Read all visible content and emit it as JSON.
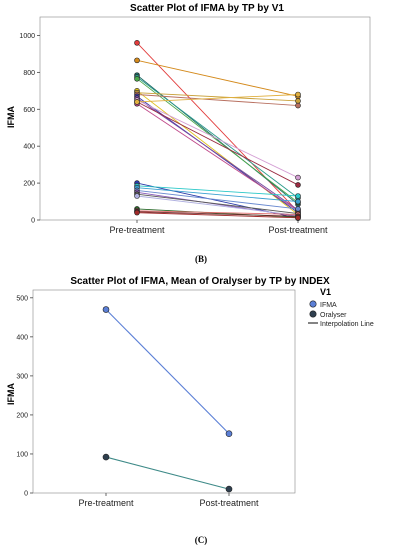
{
  "panel_b_label": "(B)",
  "panel_c_label": "(C)",
  "chart_data": [
    {
      "type": "line",
      "title": "Scatter Plot of IFMA by TP by V1",
      "xlabel": "",
      "ylabel": "IFMA",
      "categories": [
        "Pre-treatment",
        "Post-treatment"
      ],
      "ylim": [
        0,
        1100
      ],
      "yticks": [
        0,
        200,
        400,
        600,
        800,
        1000
      ],
      "series": [
        {
          "values": [
            960,
            45
          ],
          "color": "#e23b3b"
        },
        {
          "values": [
            865,
            670
          ],
          "color": "#d48a1c"
        },
        {
          "values": [
            785,
            85
          ],
          "color": "#1f6a66"
        },
        {
          "values": [
            775,
            120
          ],
          "color": "#2a9a8a"
        },
        {
          "values": [
            765,
            95
          ],
          "color": "#4aa84a"
        },
        {
          "values": [
            700,
            30
          ],
          "color": "#e0c21e"
        },
        {
          "values": [
            690,
            645
          ],
          "color": "#c9a13a"
        },
        {
          "values": [
            680,
            620
          ],
          "color": "#b87060"
        },
        {
          "values": [
            670,
            40
          ],
          "color": "#3a3aa8"
        },
        {
          "values": [
            660,
            55
          ],
          "color": "#7a4aa0"
        },
        {
          "values": [
            650,
            230
          ],
          "color": "#d49fd4"
        },
        {
          "values": [
            640,
            190
          ],
          "color": "#9a2a40"
        },
        {
          "values": [
            630,
            50
          ],
          "color": "#c04a8a"
        },
        {
          "values": [
            640,
            680
          ],
          "color": "#e0b040"
        },
        {
          "values": [
            200,
            10
          ],
          "color": "#2a3aa8"
        },
        {
          "values": [
            185,
            130
          ],
          "color": "#2ac8c8"
        },
        {
          "values": [
            175,
            100
          ],
          "color": "#3aa0d0"
        },
        {
          "values": [
            160,
            60
          ],
          "color": "#6a8ad0"
        },
        {
          "values": [
            150,
            20
          ],
          "color": "#8a5ab8"
        },
        {
          "values": [
            140,
            35
          ],
          "color": "#5a5a5a"
        },
        {
          "values": [
            130,
            25
          ],
          "color": "#b0b0e0"
        },
        {
          "values": [
            60,
            15
          ],
          "color": "#2a6a2a"
        },
        {
          "values": [
            50,
            30
          ],
          "color": "#e06a6a"
        },
        {
          "values": [
            45,
            20
          ],
          "color": "#6a2a2a"
        },
        {
          "values": [
            40,
            12
          ],
          "color": "#a02a2a"
        }
      ]
    },
    {
      "type": "line",
      "title": "Scatter Plot of IFMA, Mean of Oralyser by TP by INDEX",
      "xlabel": "",
      "ylabel": "IFMA",
      "categories": [
        "Pre-treatment",
        "Post-treatment"
      ],
      "ylim": [
        0,
        520
      ],
      "yticks": [
        0,
        100,
        200,
        300,
        400,
        500
      ],
      "legend": {
        "title": "V1",
        "position": "top-right",
        "entries": [
          "IFMA",
          "Oralyser",
          "Interpolation Line"
        ]
      },
      "series": [
        {
          "name": "IFMA",
          "values": [
            470,
            152
          ],
          "color": "#5b7fd6",
          "line": "#5b7fd6"
        },
        {
          "name": "Oralyser",
          "values": [
            92,
            10
          ],
          "color": "#2f3f4f",
          "line": "#3e8a88"
        }
      ]
    }
  ]
}
